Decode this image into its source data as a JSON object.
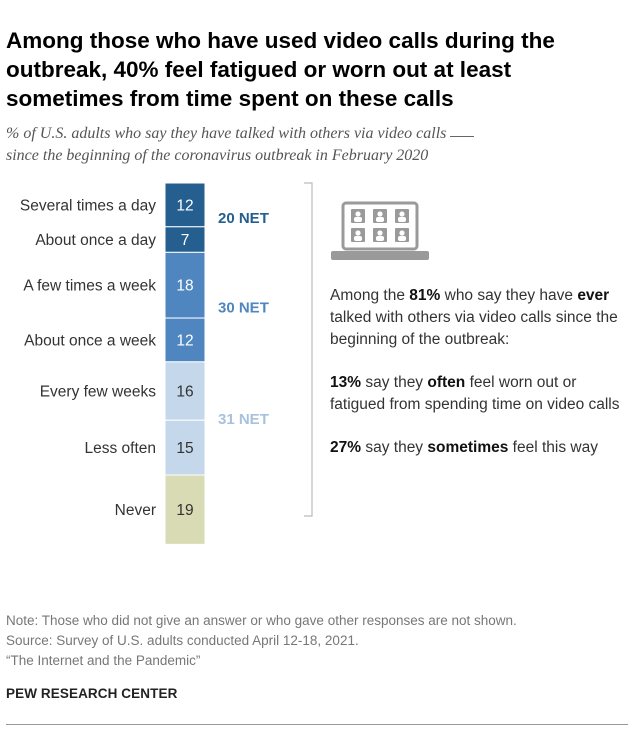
{
  "title": "Among those who have used video calls during the outbreak, 40% feel fatigued or worn out at least sometimes from time spent on these calls",
  "subtitle_part1": "% of U.S. adults who say they have talked with others via video calls",
  "subtitle_part2": "since the beginning of the coronavirus outbreak in February 2020",
  "chart_data": {
    "type": "bar",
    "orientation": "stacked-vertical",
    "categories": [
      "Several times a day",
      "About once a day",
      "A few times a week",
      "About once a week",
      "Every few weeks",
      "Less often",
      "Never"
    ],
    "values": [
      12,
      7,
      18,
      12,
      16,
      15,
      19
    ],
    "colors": [
      "#245f8f",
      "#245f8f",
      "#4f86c0",
      "#4f86c0",
      "#c5d7ea",
      "#c5d7ea",
      "#d8dbb3"
    ],
    "net_groups": [
      {
        "label": "20 NET",
        "from": 0,
        "to": 1,
        "color": "#245f8f"
      },
      {
        "label": "30 NET",
        "from": 2,
        "to": 3,
        "color": "#4f86c0"
      },
      {
        "label": "31 NET",
        "from": 4,
        "to": 5,
        "color": "#a7c1de"
      }
    ]
  },
  "aside": {
    "p1_a": "Among the ",
    "p1_b": "81%",
    "p1_c": " who say they have ",
    "p1_d": "ever",
    "p1_e": " talked with others via video calls since the beginning of the outbreak:",
    "p2_a": "13%",
    "p2_b": " say they ",
    "p2_c": "often",
    "p2_d": " feel worn out or fatigued from spending time on video calls",
    "p3_a": "27%",
    "p3_b": " say they ",
    "p3_c": "sometimes",
    "p3_d": " feel this way"
  },
  "icon": "laptop-video-call-icon",
  "notes": {
    "note": "Note: Those who did not give an answer or who gave other responses are not shown.",
    "source": "Source: Survey of U.S. adults conducted April 12-18, 2021.",
    "report": "“The Internet and the Pandemic”"
  },
  "brand": "PEW RESEARCH CENTER"
}
